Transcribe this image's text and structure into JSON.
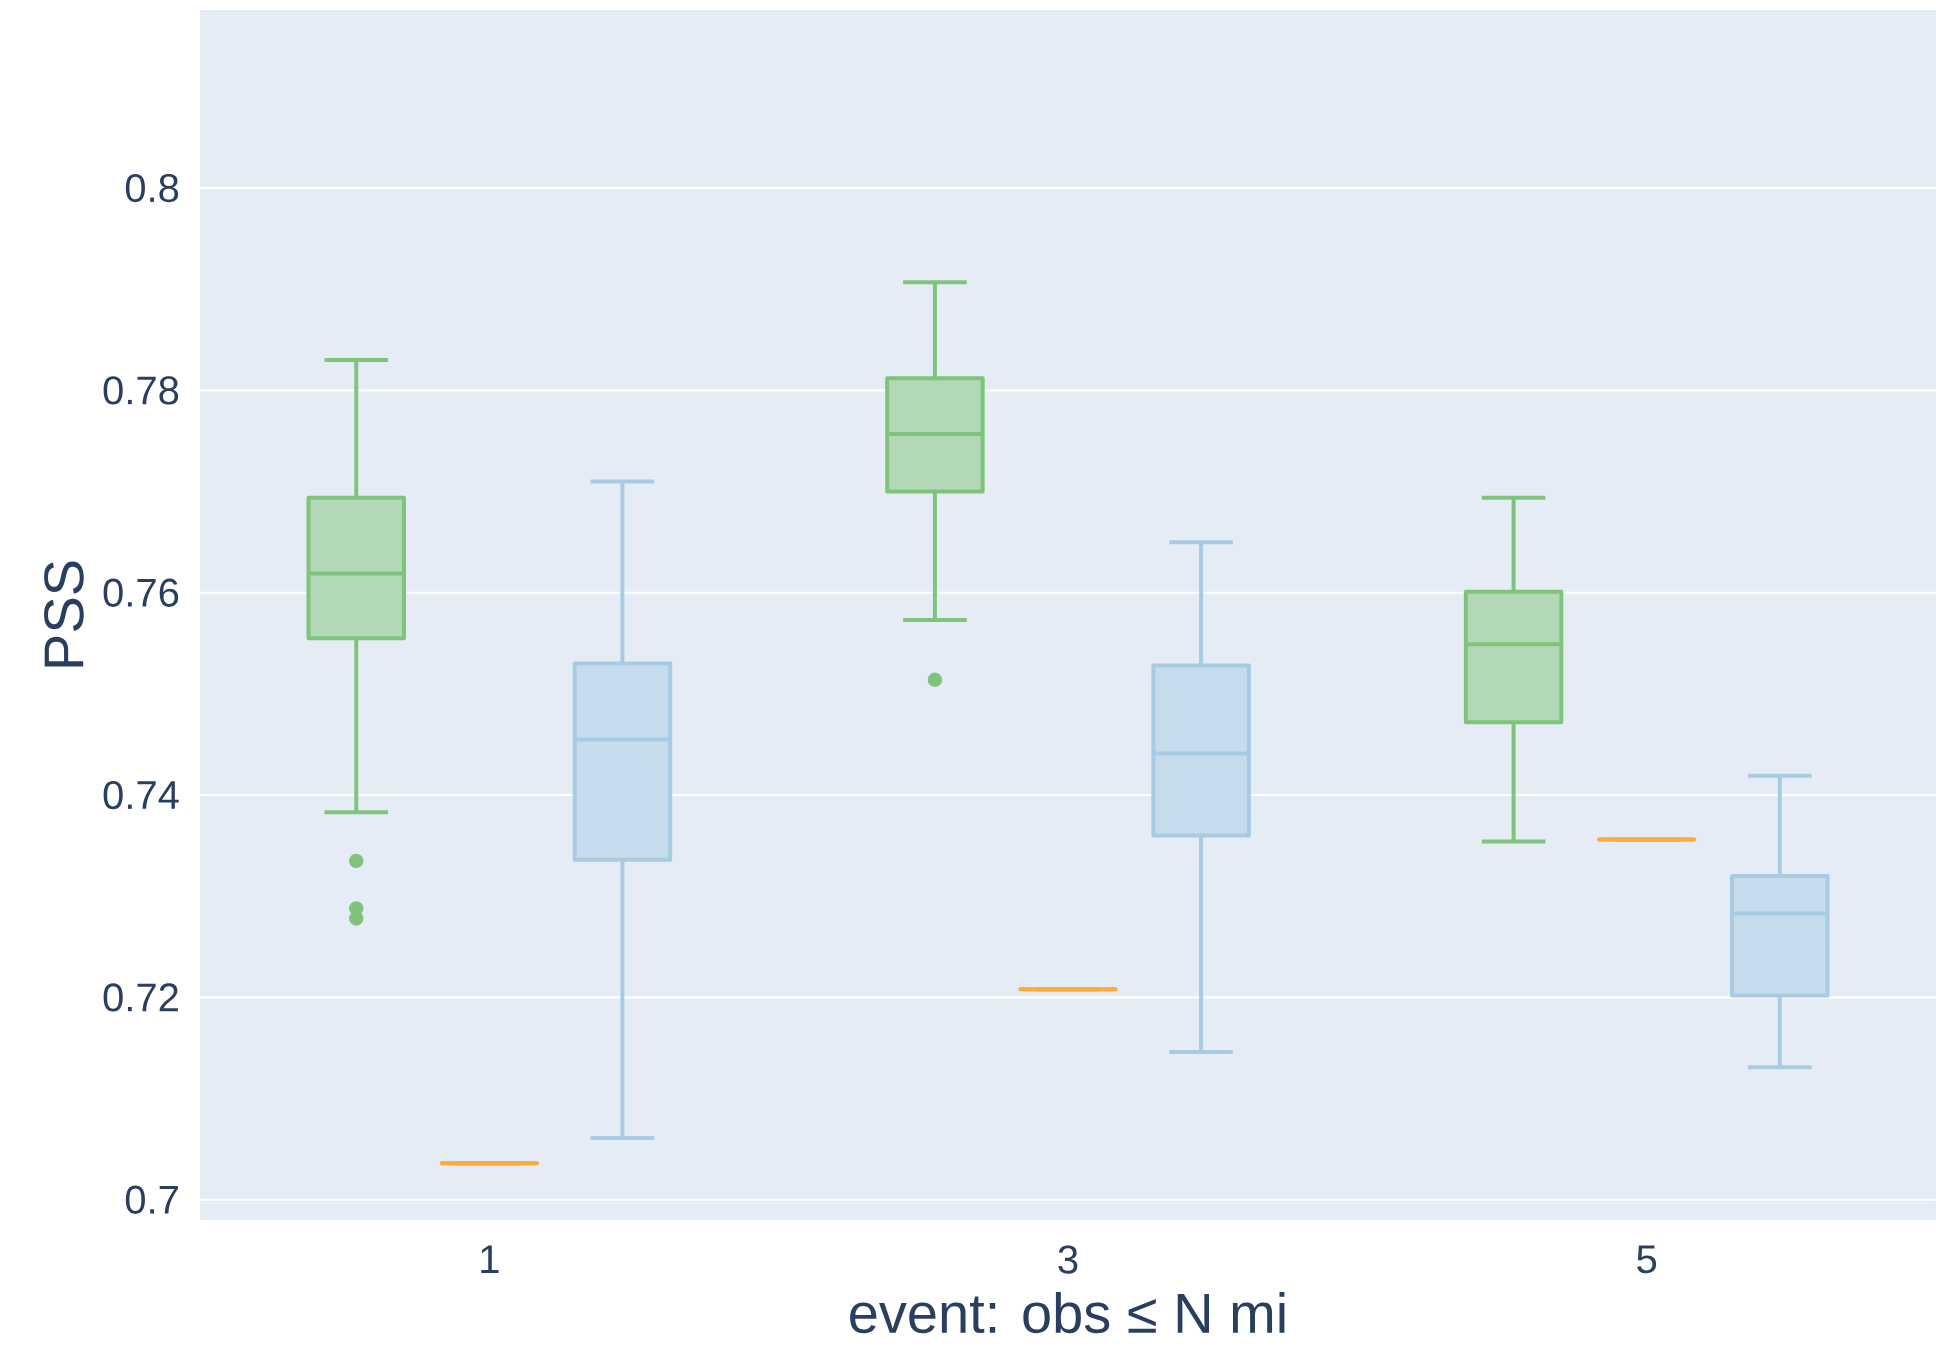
{
  "chart_data": {
    "type": "box",
    "xlabel": "event: obs ≤ N mi",
    "ylabel": "PSS",
    "categories": [
      "1",
      "3",
      "5"
    ],
    "ylim": [
      0.698,
      0.8176
    ],
    "yticks": [
      0.7,
      0.72,
      0.74,
      0.76,
      0.78,
      0.8
    ],
    "grid": "y",
    "series": [
      {
        "color": "#7fc47a",
        "boxes": [
          {
            "low": 0.7383,
            "q1": 0.7555,
            "median": 0.7619,
            "q3": 0.7694,
            "high": 0.783,
            "outliers": [
              0.7335,
              0.7288,
              0.7278
            ]
          },
          {
            "low": 0.7573,
            "q1": 0.77,
            "median": 0.7757,
            "q3": 0.7812,
            "high": 0.7907,
            "outliers": [
              0.7514
            ]
          },
          {
            "low": 0.7354,
            "q1": 0.7472,
            "median": 0.7549,
            "q3": 0.7601,
            "high": 0.7694
          }
        ]
      },
      {
        "color": "#fdac3c",
        "boxes": [
          {
            "low": 0.7036,
            "q1": 0.7036,
            "median": 0.7036,
            "q3": 0.7036,
            "high": 0.7036
          },
          {
            "low": 0.7208,
            "q1": 0.7208,
            "median": 0.7208,
            "q3": 0.7208,
            "high": 0.7208
          },
          {
            "low": 0.7356,
            "q1": 0.7356,
            "median": 0.7356,
            "q3": 0.7356,
            "high": 0.7356
          }
        ]
      },
      {
        "color": "#a6cbe3",
        "boxes": [
          {
            "low": 0.7061,
            "q1": 0.7336,
            "median": 0.7455,
            "q3": 0.753,
            "high": 0.771
          },
          {
            "low": 0.7146,
            "q1": 0.736,
            "median": 0.7441,
            "q3": 0.7528,
            "high": 0.765
          },
          {
            "low": 0.7131,
            "q1": 0.7202,
            "median": 0.7283,
            "q3": 0.732,
            "high": 0.7419
          }
        ]
      }
    ]
  }
}
